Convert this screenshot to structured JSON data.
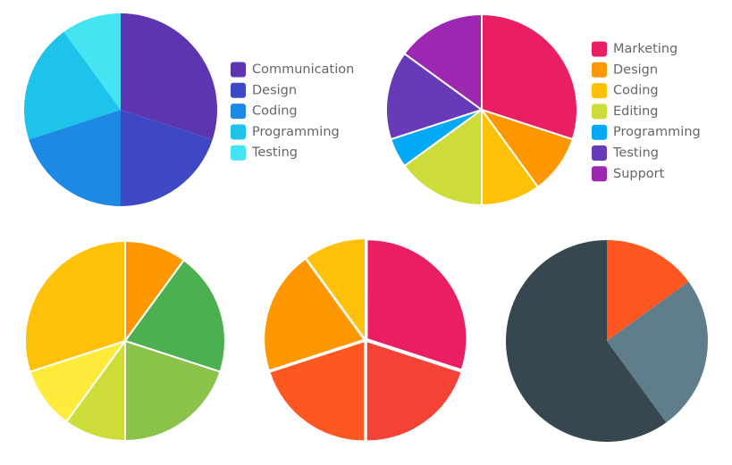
{
  "chart_data": [
    {
      "type": "pie",
      "categories": [
        "Communication",
        "Design",
        "Coding",
        "Programming",
        "Testing"
      ],
      "values": [
        30,
        20,
        20,
        20,
        10
      ],
      "colors": [
        "#5e35b1",
        "#3f48c4",
        "#1e88e5",
        "#1ec3ea",
        "#46e3f2"
      ],
      "legend": "right"
    },
    {
      "type": "pie",
      "categories": [
        "Marketing",
        "Design",
        "Coding",
        "Editing",
        "Programming",
        "Testing",
        "Support"
      ],
      "values": [
        30,
        10,
        10,
        15,
        5,
        15,
        15
      ],
      "colors": [
        "#e91e63",
        "#ff9800",
        "#ffc107",
        "#cddc39",
        "#03a9f4",
        "#673ab7",
        "#9c27b0"
      ],
      "legend": "right"
    },
    {
      "type": "pie",
      "values": [
        10,
        20,
        20,
        10,
        10,
        30
      ],
      "colors": [
        "#ff9800",
        "#4caf50",
        "#8bc34a",
        "#cddc39",
        "#ffeb3b",
        "#ffc107"
      ]
    },
    {
      "type": "pie",
      "values": [
        30,
        20,
        20,
        20,
        10
      ],
      "colors": [
        "#e91e63",
        "#f44336",
        "#ff5722",
        "#ff9800",
        "#ffc107"
      ],
      "exploded": true
    },
    {
      "type": "pie",
      "values": [
        15,
        25,
        60
      ],
      "colors": [
        "#ff5722",
        "#607d8b",
        "#37474f"
      ]
    }
  ]
}
